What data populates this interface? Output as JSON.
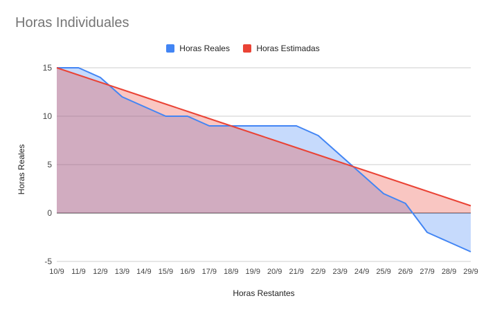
{
  "chart_data": {
    "type": "area",
    "title": "Horas Individuales",
    "xlabel": "Horas Restantes",
    "ylabel": "Horas Reales",
    "categories": [
      "10/9",
      "11/9",
      "12/9",
      "13/9",
      "14/9",
      "15/9",
      "16/9",
      "17/9",
      "18/9",
      "19/9",
      "20/9",
      "21/9",
      "22/9",
      "23/9",
      "24/9",
      "25/9",
      "26/9",
      "27/9",
      "28/9",
      "29/9"
    ],
    "series": [
      {
        "name": "Horas Reales",
        "color": "#4285f4",
        "values": [
          15,
          15,
          14,
          12,
          11,
          10,
          10,
          9,
          9,
          9,
          9,
          9,
          8,
          6,
          4,
          2,
          1,
          -2,
          -3,
          -4
        ]
      },
      {
        "name": "Horas Estimadas",
        "color": "#ea4335",
        "values": [
          15,
          14.25,
          13.5,
          12.75,
          12,
          11.25,
          10.5,
          9.75,
          9,
          8.25,
          7.5,
          6.75,
          6,
          5.25,
          4.5,
          3.75,
          3,
          2.25,
          1.5,
          0.75
        ]
      }
    ],
    "ylim": [
      -5,
      15
    ],
    "yticks": [
      -5,
      0,
      5,
      10,
      15
    ],
    "grid": true,
    "legend_position": "top"
  }
}
